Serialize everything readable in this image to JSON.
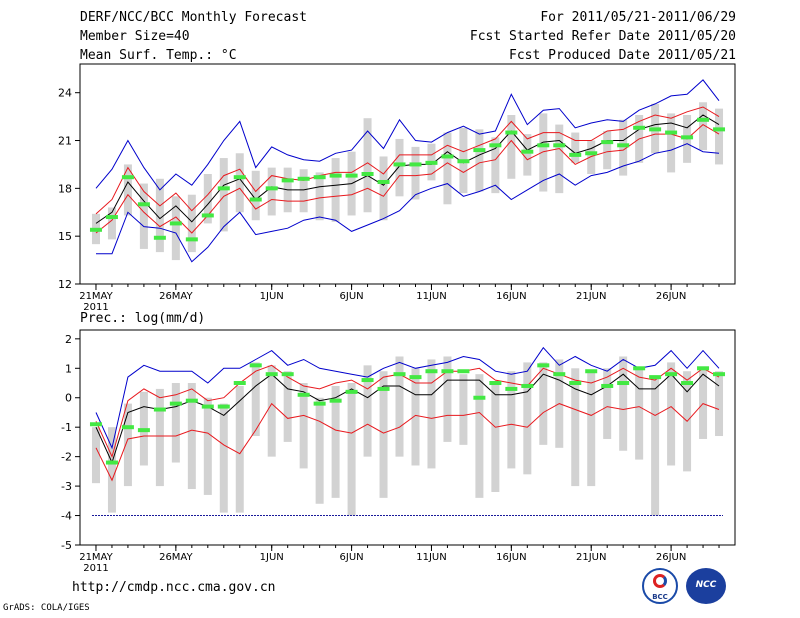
{
  "header": {
    "title": "DERF/NCC/BCC Monthly Forecast",
    "member_size": "Member Size=40",
    "variable": "Mean Surf. Temp.: °C",
    "period": "For 2011/05/21-2011/06/29",
    "refer_date": "Fcst Started Refer Date 2011/05/20",
    "produced_date": "Fcst Produced Date 2011/05/21"
  },
  "footer": {
    "url": "http://cmdp.ncc.cma.gov.cn",
    "credit": "GrADS: COLA/IGES",
    "logos": [
      "BCC",
      "NCC"
    ]
  },
  "colors": {
    "envelope": "#0000cc",
    "spread": "#e8191e",
    "mean": "#000000",
    "ensemble_bar": "#d2d2d2",
    "observed": "#43e843",
    "threshold": "#1a1a9a"
  },
  "chart_data": [
    {
      "type": "line",
      "title": "Mean Surf. Temp.: °C",
      "ylim": [
        12,
        25.8
      ],
      "yticks": [
        12,
        15,
        18,
        21,
        24
      ],
      "xticks": [
        {
          "day": 1,
          "label": "21MAY"
        },
        {
          "day": 6,
          "label": "26MAY"
        },
        {
          "day": 12,
          "label": "1JUN"
        },
        {
          "day": 17,
          "label": "6JUN"
        },
        {
          "day": 22,
          "label": "11JUN"
        },
        {
          "day": 27,
          "label": "16JUN"
        },
        {
          "day": 32,
          "label": "21JUN"
        },
        {
          "day": 37,
          "label": "26JUN"
        }
      ],
      "year_label": "2011",
      "x_days": [
        1,
        2,
        3,
        4,
        5,
        6,
        7,
        8,
        9,
        10,
        11,
        12,
        13,
        14,
        15,
        16,
        17,
        18,
        19,
        20,
        21,
        22,
        23,
        24,
        25,
        26,
        27,
        28,
        29,
        30,
        31,
        32,
        33,
        34,
        35,
        36,
        37,
        38,
        39,
        40
      ],
      "series": [
        {
          "name": "max",
          "values": [
            13.9,
            13.9,
            16.5,
            15.6,
            15.5,
            15.2,
            13.4,
            14.3,
            15.6,
            16.5,
            15.1,
            15.3,
            15.5,
            16.0,
            16.2,
            16.0,
            15.3,
            15.7,
            16.1,
            16.6,
            17.6,
            18.0,
            18.3,
            17.5,
            17.8,
            18.2,
            17.3,
            17.9,
            18.5,
            18.9,
            18.2,
            18.8,
            19.0,
            19.4,
            19.7,
            20.2,
            20.4,
            20.8,
            20.3,
            20.2
          ]
        },
        {
          "name": "max",
          "values": [
            18.0,
            19.2,
            21.0,
            19.3,
            17.9,
            18.9,
            18.2,
            19.5,
            21.0,
            22.2,
            19.3,
            20.6,
            20.1,
            19.8,
            19.7,
            20.2,
            20.4,
            21.6,
            20.5,
            22.3,
            21.0,
            20.9,
            21.5,
            21.9,
            21.4,
            21.6,
            23.9,
            22.0,
            22.9,
            23.0,
            21.8,
            22.1,
            22.3,
            22.2,
            22.9,
            23.3,
            23.8,
            23.9,
            24.8,
            23.5
          ]
        },
        {
          "name": "upper",
          "values": [
            16.4,
            17.3,
            19.3,
            17.8,
            16.9,
            17.7,
            16.6,
            17.6,
            18.8,
            19.2,
            17.8,
            18.8,
            18.6,
            18.5,
            18.8,
            19.0,
            19.0,
            19.6,
            18.9,
            20.1,
            20.1,
            20.1,
            20.7,
            20.3,
            20.7,
            21.1,
            22.2,
            21.1,
            21.5,
            21.5,
            21.0,
            21.0,
            21.6,
            21.7,
            22.2,
            22.6,
            22.4,
            22.8,
            23.1,
            22.5
          ]
        },
        {
          "name": "mean",
          "values": [
            15.8,
            16.5,
            18.4,
            17.2,
            16.1,
            16.9,
            15.9,
            17.0,
            18.2,
            18.6,
            17.3,
            18.1,
            17.9,
            17.9,
            18.1,
            18.2,
            18.3,
            18.8,
            18.2,
            19.4,
            19.5,
            19.5,
            20.3,
            19.6,
            20.1,
            20.5,
            21.6,
            20.4,
            20.9,
            21.0,
            20.2,
            20.5,
            21.0,
            21.0,
            21.7,
            22.0,
            22.1,
            21.8,
            22.6,
            22.0
          ]
        },
        {
          "name": "lower",
          "values": [
            15.2,
            16.0,
            17.6,
            16.5,
            15.6,
            16.2,
            15.2,
            16.3,
            17.5,
            18.0,
            16.7,
            17.3,
            17.2,
            17.2,
            17.4,
            17.5,
            17.6,
            18.0,
            17.5,
            18.8,
            18.8,
            18.9,
            19.6,
            19.0,
            19.6,
            19.8,
            21.0,
            19.8,
            20.3,
            20.5,
            19.5,
            20.0,
            20.3,
            20.4,
            21.1,
            21.4,
            21.4,
            21.1,
            22.0,
            21.4
          ]
        },
        {
          "name": "observed",
          "values": [
            15.4,
            16.2,
            18.7,
            17.0,
            14.9,
            15.8,
            14.8,
            16.3,
            18.0,
            18.7,
            17.3,
            18.0,
            18.5,
            18.6,
            18.7,
            18.8,
            18.8,
            18.9,
            18.4,
            19.5,
            19.5,
            19.6,
            20.0,
            19.7,
            20.4,
            20.7,
            21.5,
            20.3,
            20.7,
            20.7,
            20.1,
            20.2,
            20.9,
            20.7,
            21.8,
            21.7,
            21.5,
            21.2,
            22.3,
            21.7
          ]
        }
      ],
      "ensemble_bars": {
        "low": [
          14.5,
          14.8,
          16.3,
          14.2,
          14.0,
          13.5,
          14.0,
          15.8,
          15.3,
          16.5,
          16.0,
          16.3,
          16.5,
          16.5,
          16.0,
          15.9,
          16.3,
          16.5,
          16.0,
          17.5,
          17.3,
          18.5,
          17.0,
          17.7,
          17.8,
          17.7,
          18.6,
          18.8,
          17.8,
          17.7,
          19.6,
          18.9,
          19.2,
          18.8,
          19.6,
          20.2,
          19.0,
          19.6,
          20.4,
          19.5
        ],
        "high": [
          16.4,
          16.8,
          19.5,
          18.3,
          18.6,
          17.5,
          17.6,
          18.9,
          19.9,
          20.2,
          19.1,
          19.3,
          19.3,
          19.2,
          19.0,
          19.9,
          20.3,
          22.4,
          20.0,
          21.1,
          20.6,
          20.8,
          21.5,
          21.8,
          21.7,
          21.2,
          22.6,
          21.4,
          22.7,
          22.0,
          21.5,
          21.0,
          21.6,
          22.3,
          22.6,
          23.3,
          22.7,
          22.6,
          23.4,
          23.0
        ]
      }
    },
    {
      "type": "line",
      "title": "Prec.: log(mm/d)",
      "ylim": [
        -5,
        2.3
      ],
      "yticks": [
        -5,
        -4,
        -3,
        -2,
        -1,
        0,
        1,
        2
      ],
      "threshold": -4,
      "xticks": [
        {
          "day": 1,
          "label": "21MAY"
        },
        {
          "day": 6,
          "label": "26MAY"
        },
        {
          "day": 12,
          "label": "1JUN"
        },
        {
          "day": 17,
          "label": "6JUN"
        },
        {
          "day": 22,
          "label": "11JUN"
        },
        {
          "day": 27,
          "label": "16JUN"
        },
        {
          "day": 32,
          "label": "21JUN"
        },
        {
          "day": 37,
          "label": "26JUN"
        }
      ],
      "year_label": "2011",
      "x_days": [
        1,
        2,
        3,
        4,
        5,
        6,
        7,
        8,
        9,
        10,
        11,
        12,
        13,
        14,
        15,
        16,
        17,
        18,
        19,
        20,
        21,
        22,
        23,
        24,
        25,
        26,
        27,
        28,
        29,
        30,
        31,
        32,
        33,
        34,
        35,
        36,
        37,
        38,
        39,
        40
      ],
      "series": [
        {
          "name": "max",
          "values": [
            -0.5,
            -1.7,
            0.7,
            1.1,
            0.9,
            0.9,
            0.9,
            0.5,
            1.0,
            1.0,
            1.3,
            1.6,
            1.1,
            1.3,
            1.0,
            0.9,
            0.8,
            0.7,
            1.0,
            1.2,
            1.0,
            1.1,
            1.2,
            1.4,
            1.3,
            0.9,
            0.8,
            0.9,
            1.7,
            1.1,
            1.4,
            1.1,
            0.9,
            1.3,
            1.0,
            1.1,
            1.6,
            1.0,
            1.6,
            1.0
          ]
        },
        {
          "name": "upper",
          "values": [
            -0.8,
            -2.0,
            -0.1,
            0.3,
            0.0,
            0.1,
            0.3,
            -0.1,
            0.0,
            0.5,
            0.9,
            1.1,
            0.7,
            0.4,
            0.3,
            0.5,
            0.6,
            0.3,
            0.7,
            0.8,
            0.5,
            0.5,
            0.9,
            0.9,
            1.0,
            0.6,
            0.5,
            0.4,
            1.0,
            0.8,
            0.6,
            0.5,
            0.7,
            1.0,
            0.7,
            0.6,
            1.0,
            0.6,
            1.0,
            0.7
          ]
        },
        {
          "name": "mean",
          "values": [
            -1.0,
            -2.2,
            -0.5,
            -0.3,
            -0.4,
            -0.3,
            -0.1,
            -0.3,
            -0.6,
            -0.1,
            0.4,
            0.8,
            0.3,
            0.2,
            -0.1,
            0.0,
            0.3,
            0.0,
            0.4,
            0.4,
            0.1,
            0.1,
            0.6,
            0.6,
            0.6,
            0.1,
            0.1,
            0.2,
            0.8,
            0.6,
            0.3,
            0.1,
            0.4,
            0.8,
            0.3,
            0.3,
            0.8,
            0.2,
            0.8,
            0.4
          ]
        },
        {
          "name": "lower",
          "values": [
            -1.7,
            -2.8,
            -1.4,
            -1.3,
            -1.3,
            -1.3,
            -1.1,
            -1.2,
            -1.6,
            -1.9,
            -1.1,
            -0.2,
            -0.7,
            -0.6,
            -0.8,
            -1.1,
            -1.2,
            -0.9,
            -1.2,
            -1.0,
            -0.6,
            -0.7,
            -0.6,
            -0.6,
            -0.5,
            -1.0,
            -0.9,
            -1.0,
            -0.5,
            -0.2,
            -0.4,
            -0.6,
            -0.3,
            -0.4,
            -0.3,
            -0.6,
            -0.3,
            -0.8,
            -0.2,
            -0.4
          ]
        },
        {
          "name": "observed",
          "values": [
            -0.9,
            -2.2,
            -1.0,
            -1.1,
            -0.4,
            -0.2,
            -0.1,
            -0.3,
            -0.3,
            0.5,
            1.1,
            0.8,
            0.8,
            0.1,
            -0.2,
            -0.1,
            0.2,
            0.6,
            0.3,
            0.8,
            0.7,
            0.9,
            0.9,
            0.9,
            0.0,
            0.5,
            0.3,
            0.4,
            1.1,
            0.8,
            0.5,
            0.9,
            0.4,
            0.5,
            1.0,
            0.7,
            0.8,
            0.5,
            1.0,
            0.8
          ]
        }
      ],
      "ensemble_bars": {
        "low": [
          -2.9,
          -3.9,
          -3.0,
          -2.3,
          -3.0,
          -2.2,
          -3.1,
          -3.3,
          -3.9,
          -3.9,
          -1.3,
          -2.0,
          -1.5,
          -2.4,
          -3.6,
          -3.4,
          -4.0,
          -2.0,
          -3.4,
          -2.0,
          -2.3,
          -2.4,
          -1.5,
          -1.6,
          -3.4,
          -3.2,
          -2.4,
          -2.6,
          -1.6,
          -1.7,
          -3.0,
          -3.0,
          -1.4,
          -1.8,
          -2.1,
          -4.0,
          -2.3,
          -2.5,
          -1.4,
          -1.3
        ],
        "high": [
          -1.0,
          -1.0,
          -0.2,
          0.2,
          0.3,
          0.5,
          0.5,
          0.0,
          -0.2,
          0.4,
          1.2,
          1.1,
          0.9,
          0.5,
          0.0,
          0.4,
          0.5,
          1.1,
          0.9,
          1.4,
          1.0,
          1.3,
          1.4,
          0.8,
          0.8,
          0.5,
          0.9,
          1.2,
          1.2,
          1.3,
          1.0,
          0.9,
          1.0,
          1.4,
          1.0,
          0.7,
          1.2,
          0.9,
          1.0,
          0.9
        ]
      }
    }
  ]
}
